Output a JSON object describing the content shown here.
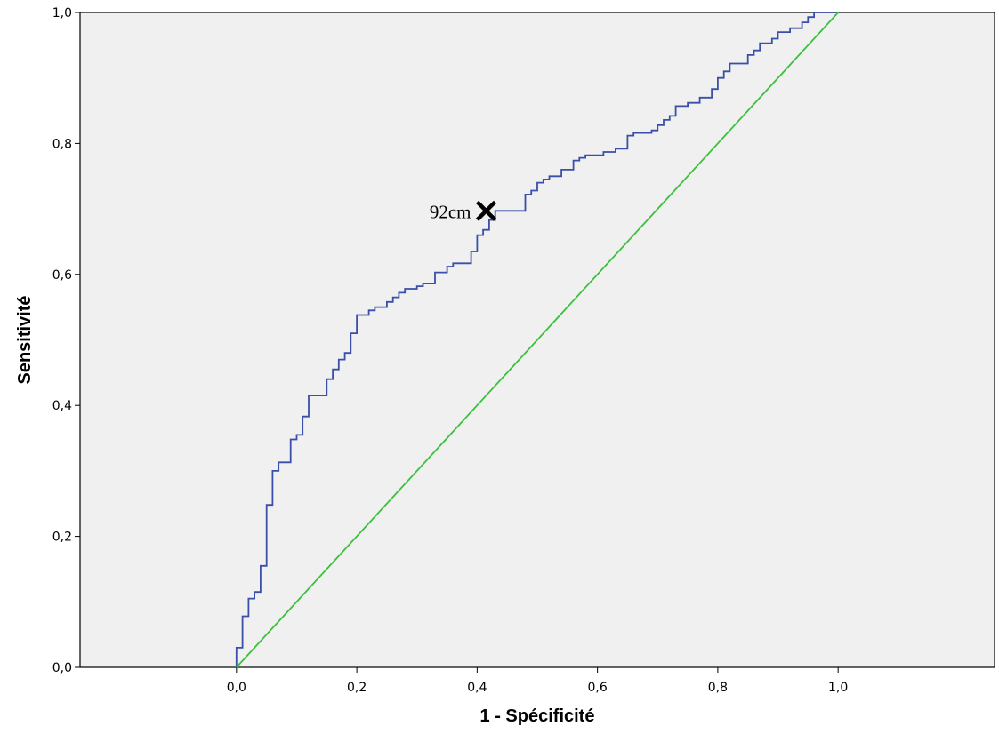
{
  "chart_data": {
    "type": "line",
    "xlabel": "1 - Spécificité",
    "ylabel": "Sensitivité",
    "xlim": [
      -0.26,
      1.26
    ],
    "ylim": [
      0,
      1
    ],
    "x_ticks": [
      "0,0",
      "0,2",
      "0,4",
      "0,6",
      "0,8",
      "1,0"
    ],
    "x_tick_values": [
      0,
      0.2,
      0.4,
      0.6,
      0.8,
      1.0
    ],
    "y_ticks": [
      "0,0",
      "0,2",
      "0,4",
      "0,6",
      "0,8",
      "1,0"
    ],
    "y_tick_values": [
      0,
      0.2,
      0.4,
      0.6,
      0.8,
      1.0
    ],
    "grid": false,
    "background": "#f0f0f0",
    "series": [
      {
        "color": "#3a4fa8",
        "points": [
          [
            0,
            0
          ],
          [
            0,
            0.03
          ],
          [
            0.01,
            0.03
          ],
          [
            0.01,
            0.078
          ],
          [
            0.02,
            0.078
          ],
          [
            0.02,
            0.105
          ],
          [
            0.03,
            0.105
          ],
          [
            0.03,
            0.115
          ],
          [
            0.04,
            0.115
          ],
          [
            0.04,
            0.155
          ],
          [
            0.05,
            0.155
          ],
          [
            0.05,
            0.248
          ],
          [
            0.06,
            0.248
          ],
          [
            0.06,
            0.3
          ],
          [
            0.07,
            0.3
          ],
          [
            0.07,
            0.313
          ],
          [
            0.09,
            0.313
          ],
          [
            0.09,
            0.348
          ],
          [
            0.1,
            0.348
          ],
          [
            0.1,
            0.355
          ],
          [
            0.11,
            0.355
          ],
          [
            0.11,
            0.383
          ],
          [
            0.12,
            0.383
          ],
          [
            0.12,
            0.415
          ],
          [
            0.15,
            0.415
          ],
          [
            0.15,
            0.44
          ],
          [
            0.16,
            0.44
          ],
          [
            0.16,
            0.455
          ],
          [
            0.17,
            0.455
          ],
          [
            0.17,
            0.47
          ],
          [
            0.18,
            0.47
          ],
          [
            0.18,
            0.48
          ],
          [
            0.19,
            0.48
          ],
          [
            0.19,
            0.51
          ],
          [
            0.2,
            0.51
          ],
          [
            0.2,
            0.538
          ],
          [
            0.22,
            0.538
          ],
          [
            0.22,
            0.545
          ],
          [
            0.23,
            0.545
          ],
          [
            0.23,
            0.55
          ],
          [
            0.25,
            0.55
          ],
          [
            0.25,
            0.558
          ],
          [
            0.26,
            0.558
          ],
          [
            0.26,
            0.565
          ],
          [
            0.27,
            0.565
          ],
          [
            0.27,
            0.572
          ],
          [
            0.28,
            0.572
          ],
          [
            0.28,
            0.578
          ],
          [
            0.3,
            0.578
          ],
          [
            0.3,
            0.582
          ],
          [
            0.31,
            0.582
          ],
          [
            0.31,
            0.586
          ],
          [
            0.33,
            0.586
          ],
          [
            0.33,
            0.603
          ],
          [
            0.35,
            0.603
          ],
          [
            0.35,
            0.612
          ],
          [
            0.36,
            0.612
          ],
          [
            0.36,
            0.617
          ],
          [
            0.39,
            0.617
          ],
          [
            0.39,
            0.635
          ],
          [
            0.4,
            0.635
          ],
          [
            0.4,
            0.66
          ],
          [
            0.41,
            0.66
          ],
          [
            0.41,
            0.668
          ],
          [
            0.42,
            0.668
          ],
          [
            0.42,
            0.683
          ],
          [
            0.43,
            0.683
          ],
          [
            0.43,
            0.697
          ],
          [
            0.48,
            0.697
          ],
          [
            0.48,
            0.722
          ],
          [
            0.49,
            0.722
          ],
          [
            0.49,
            0.728
          ],
          [
            0.5,
            0.728
          ],
          [
            0.5,
            0.74
          ],
          [
            0.51,
            0.74
          ],
          [
            0.51,
            0.745
          ],
          [
            0.52,
            0.745
          ],
          [
            0.52,
            0.75
          ],
          [
            0.54,
            0.75
          ],
          [
            0.54,
            0.76
          ],
          [
            0.56,
            0.76
          ],
          [
            0.56,
            0.774
          ],
          [
            0.57,
            0.774
          ],
          [
            0.57,
            0.778
          ],
          [
            0.58,
            0.778
          ],
          [
            0.58,
            0.782
          ],
          [
            0.61,
            0.782
          ],
          [
            0.61,
            0.787
          ],
          [
            0.63,
            0.787
          ],
          [
            0.63,
            0.792
          ],
          [
            0.65,
            0.792
          ],
          [
            0.65,
            0.812
          ],
          [
            0.66,
            0.812
          ],
          [
            0.66,
            0.816
          ],
          [
            0.69,
            0.816
          ],
          [
            0.69,
            0.82
          ],
          [
            0.7,
            0.82
          ],
          [
            0.7,
            0.828
          ],
          [
            0.71,
            0.828
          ],
          [
            0.71,
            0.836
          ],
          [
            0.72,
            0.836
          ],
          [
            0.72,
            0.842
          ],
          [
            0.73,
            0.842
          ],
          [
            0.73,
            0.857
          ],
          [
            0.75,
            0.857
          ],
          [
            0.75,
            0.862
          ],
          [
            0.77,
            0.862
          ],
          [
            0.77,
            0.87
          ],
          [
            0.79,
            0.87
          ],
          [
            0.79,
            0.883
          ],
          [
            0.8,
            0.883
          ],
          [
            0.8,
            0.9
          ],
          [
            0.81,
            0.9
          ],
          [
            0.81,
            0.91
          ],
          [
            0.82,
            0.91
          ],
          [
            0.82,
            0.922
          ],
          [
            0.85,
            0.922
          ],
          [
            0.85,
            0.935
          ],
          [
            0.86,
            0.935
          ],
          [
            0.86,
            0.942
          ],
          [
            0.87,
            0.942
          ],
          [
            0.87,
            0.953
          ],
          [
            0.89,
            0.953
          ],
          [
            0.89,
            0.96
          ],
          [
            0.9,
            0.96
          ],
          [
            0.9,
            0.97
          ],
          [
            0.92,
            0.97
          ],
          [
            0.92,
            0.976
          ],
          [
            0.94,
            0.976
          ],
          [
            0.94,
            0.985
          ],
          [
            0.95,
            0.985
          ],
          [
            0.95,
            0.993
          ],
          [
            0.96,
            0.993
          ],
          [
            0.96,
            1.0
          ],
          [
            1.0,
            1.0
          ]
        ]
      },
      {
        "color": "#3cc13c",
        "points": [
          [
            0,
            0
          ],
          [
            1,
            1
          ]
        ]
      }
    ],
    "annotations": [
      {
        "label": "92cm",
        "x": 0.415,
        "y": 0.697,
        "marker": "x"
      }
    ]
  }
}
